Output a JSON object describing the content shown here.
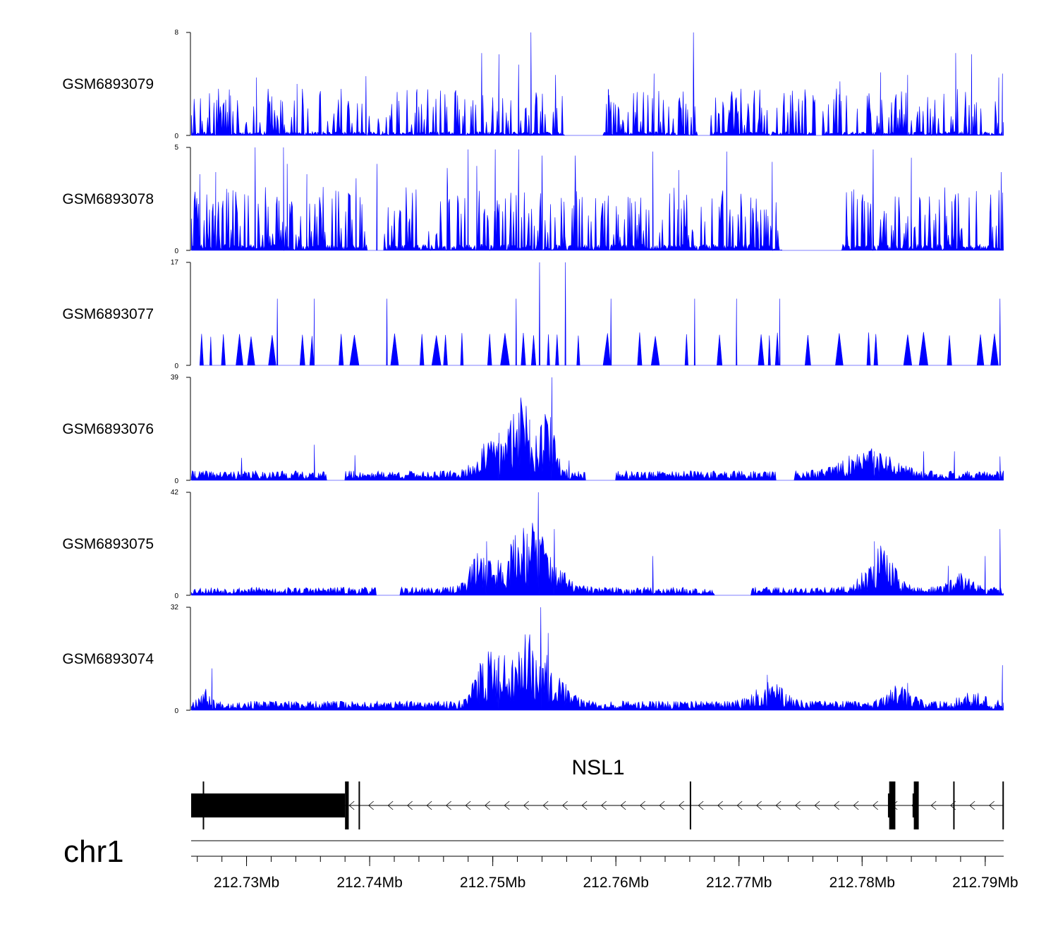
{
  "chart_data": {
    "type": "area",
    "title": "",
    "xlabel": "",
    "ylabel": "",
    "chromosome": "chr1",
    "x_range_mb": [
      212.7255,
      212.7915
    ],
    "x_ticks": [
      212.73,
      212.74,
      212.75,
      212.76,
      212.77,
      212.78,
      212.79
    ],
    "x_tick_labels": [
      "212.73Mb",
      "212.74Mb",
      "212.75Mb",
      "212.76Mb",
      "212.77Mb",
      "212.78Mb",
      "212.79Mb"
    ],
    "color": "#0000ff",
    "series": [
      {
        "name": "GSM6893079",
        "ymin_label": "0",
        "ymax_label": "8",
        "ylim": [
          0,
          8
        ],
        "profile": "noise",
        "base": 1.3,
        "seed": 11,
        "peaks": [
          [
            212.7287,
            3.1
          ],
          [
            212.7308,
            4.5
          ],
          [
            212.7341,
            4.0
          ],
          [
            212.7397,
            4.6
          ],
          [
            212.7438,
            3.3
          ],
          [
            212.7491,
            6.4
          ],
          [
            212.7505,
            6.3
          ],
          [
            212.7521,
            5.5
          ],
          [
            212.7531,
            8.0
          ],
          [
            212.7551,
            4.7
          ],
          [
            212.7594,
            3.5
          ],
          [
            212.7631,
            4.8
          ],
          [
            212.7663,
            8.0
          ],
          [
            212.7782,
            4.2
          ],
          [
            212.7815,
            4.9
          ],
          [
            212.7837,
            4.7
          ],
          [
            212.7876,
            6.4
          ],
          [
            212.7889,
            6.3
          ],
          [
            212.7911,
            4.5
          ],
          [
            212.7914,
            4.8
          ]
        ],
        "gaps": [
          [
            212.7558,
            212.759
          ],
          [
            212.7666,
            212.7677
          ],
          [
            212.7762,
            212.7768
          ]
        ]
      },
      {
        "name": "GSM6893078",
        "ymin_label": "0",
        "ymax_label": "5",
        "ylim": [
          0,
          5
        ],
        "profile": "noise",
        "base": 1.1,
        "seed": 23,
        "peaks": [
          [
            212.7262,
            3.7
          ],
          [
            212.7275,
            3.8
          ],
          [
            212.7307,
            5.0
          ],
          [
            212.733,
            5.0
          ],
          [
            212.7333,
            4.2
          ],
          [
            212.7349,
            3.7
          ],
          [
            212.7389,
            3.5
          ],
          [
            212.7406,
            4.2
          ],
          [
            212.7463,
            4.0
          ],
          [
            212.748,
            4.9
          ],
          [
            212.7487,
            4.1
          ],
          [
            212.7502,
            4.9
          ],
          [
            212.7521,
            4.9
          ],
          [
            212.754,
            4.6
          ],
          [
            212.7567,
            4.6
          ],
          [
            212.763,
            4.8
          ],
          [
            212.7651,
            3.9
          ],
          [
            212.769,
            4.8
          ],
          [
            212.7727,
            4.3
          ],
          [
            212.7809,
            4.9
          ],
          [
            212.784,
            4.5
          ],
          [
            212.7913,
            3.8
          ]
        ],
        "gaps": [
          [
            212.7398,
            212.7412
          ],
          [
            212.7735,
            212.7783
          ]
        ]
      },
      {
        "name": "GSM6893077",
        "ymin_label": "0",
        "ymax_label": "17",
        "ylim": [
          0,
          17
        ],
        "profile": "sparse",
        "start": 212.7262,
        "end": 212.7913,
        "h": 5.5,
        "step": [
          0.0002,
          0.0022
        ],
        "seed": 37,
        "peaks": [
          [
            212.7325,
            11.0
          ],
          [
            212.7355,
            11.0
          ],
          [
            212.7414,
            11.0
          ],
          [
            212.7519,
            11.0
          ],
          [
            212.7538,
            17.0
          ],
          [
            212.7559,
            17.0
          ],
          [
            212.7596,
            11.0
          ],
          [
            212.7664,
            11.0
          ],
          [
            212.7698,
            11.0
          ],
          [
            212.7733,
            11.0
          ],
          [
            212.7912,
            11.0
          ]
        ]
      },
      {
        "name": "GSM6893076",
        "ymin_label": "0",
        "ymax_label": "39",
        "ylim": [
          0,
          39
        ],
        "profile": "broad",
        "seed": 41,
        "base": 2.5,
        "floor": 0.0,
        "bumps": [
          [
            212.7525,
            0.0012,
            22
          ],
          [
            212.75,
            0.0015,
            9
          ],
          [
            212.7545,
            0.0008,
            14
          ],
          [
            212.7805,
            0.0025,
            6
          ]
        ],
        "peaks": [
          [
            212.7258,
            3.5
          ],
          [
            212.7296,
            8.5
          ],
          [
            212.7355,
            13.5
          ],
          [
            212.7388,
            9.5
          ],
          [
            212.7505,
            18.0
          ],
          [
            212.753,
            23.0
          ],
          [
            212.7548,
            39.0
          ],
          [
            212.7562,
            7.5
          ],
          [
            212.781,
            11.0
          ],
          [
            212.785,
            11.0
          ],
          [
            212.7875,
            11.0
          ],
          [
            212.7912,
            9.0
          ]
        ],
        "gaps": [
          [
            212.7365,
            212.738
          ],
          [
            212.7575,
            212.76
          ],
          [
            212.773,
            212.7745
          ]
        ]
      },
      {
        "name": "GSM6893075",
        "ymin_label": "0",
        "ymax_label": "42",
        "ylim": [
          0,
          42
        ],
        "profile": "broad",
        "seed": 53,
        "base": 2.3,
        "floor": 0.0,
        "bumps": [
          [
            212.753,
            0.0023,
            20
          ],
          [
            212.749,
            0.0012,
            10
          ],
          [
            212.7815,
            0.0015,
            12
          ],
          [
            212.788,
            0.0013,
            4
          ]
        ],
        "peaks": [
          [
            212.7537,
            42.0
          ],
          [
            212.755,
            27.0
          ],
          [
            212.7495,
            22.0
          ],
          [
            212.763,
            16.0
          ],
          [
            212.781,
            22.0
          ],
          [
            212.787,
            12.0
          ],
          [
            212.79,
            16.0
          ],
          [
            212.7912,
            27.0
          ]
        ],
        "gaps": [
          [
            212.7405,
            212.7425
          ],
          [
            212.768,
            212.771
          ]
        ]
      },
      {
        "name": "GSM6893074",
        "ymin_label": "0",
        "ymax_label": "32",
        "ylim": [
          0,
          32
        ],
        "profile": "broad",
        "seed": 67,
        "base": 2.0,
        "floor": 0.4,
        "bumps": [
          [
            212.7532,
            0.0023,
            16
          ],
          [
            212.7497,
            0.0014,
            10
          ],
          [
            212.7725,
            0.0015,
            4.5
          ],
          [
            212.783,
            0.0012,
            3.5
          ],
          [
            212.789,
            0.0012,
            2.5
          ],
          [
            212.7265,
            0.0006,
            3
          ]
        ],
        "peaks": [
          [
            212.7272,
            13.0
          ],
          [
            212.7539,
            32.0
          ],
          [
            212.7545,
            24.0
          ],
          [
            212.7505,
            17.0
          ],
          [
            212.7723,
            11.0
          ],
          [
            212.7837,
            8.5
          ],
          [
            212.7914,
            14.0
          ]
        ],
        "gaps": []
      }
    ],
    "gene": {
      "name": "NSL1",
      "strand": "-",
      "start_mb": 212.7255,
      "end_mb": 212.7915,
      "thick_exons_mb": [
        [
          212.7255,
          212.738
        ]
      ],
      "exons_mb": [
        [
          212.738,
          212.7383
        ],
        [
          212.7391,
          212.7392
        ],
        [
          212.766,
          212.7661
        ],
        [
          212.7822,
          212.7827
        ],
        [
          212.7842,
          212.7846
        ],
        [
          212.7874,
          212.7875
        ],
        [
          212.7914,
          212.7915
        ]
      ]
    }
  }
}
